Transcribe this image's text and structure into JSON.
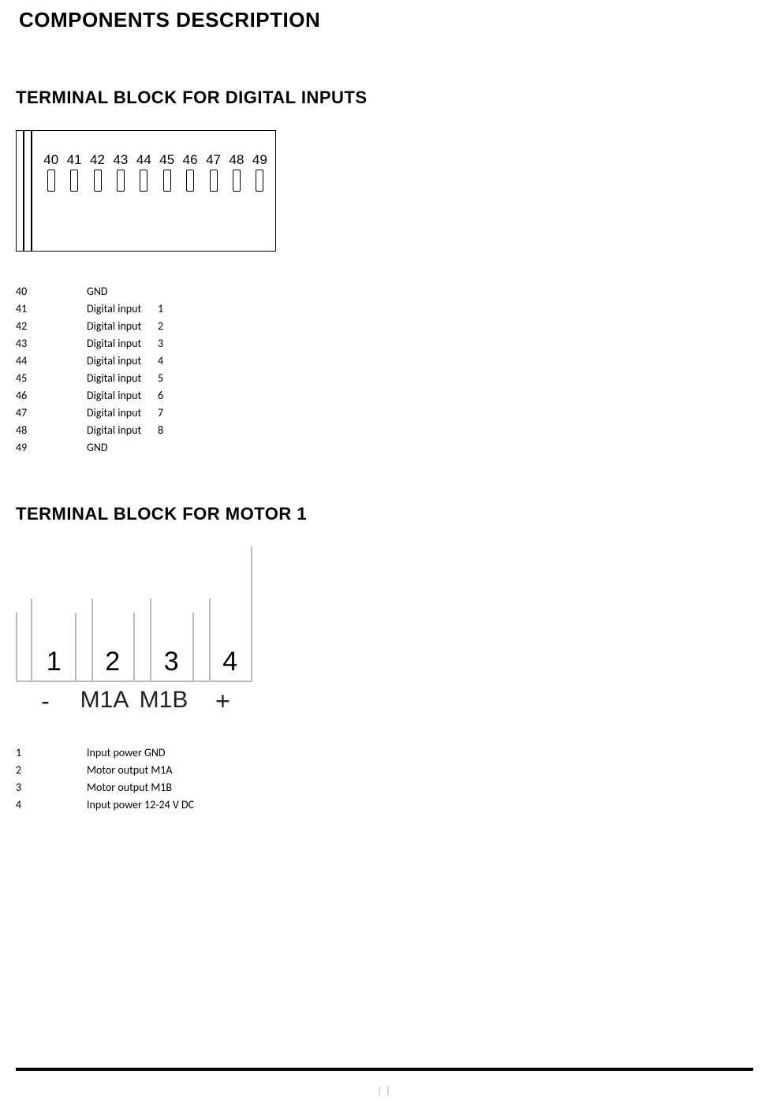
{
  "title": "COMPONENTS DESCRIPTION",
  "digital": {
    "heading": "TERMINAL BLOCK FOR DIGITAL INPUTS",
    "pins": [
      "40",
      "41",
      "42",
      "43",
      "44",
      "45",
      "46",
      "47",
      "48",
      "49"
    ],
    "rows": [
      {
        "num": "40",
        "label": "GND",
        "idx": ""
      },
      {
        "num": "41",
        "label": "Digital input",
        "idx": "1"
      },
      {
        "num": "42",
        "label": "Digital input",
        "idx": "2"
      },
      {
        "num": "43",
        "label": "Digital input",
        "idx": "3"
      },
      {
        "num": "44",
        "label": "Digital input",
        "idx": "4"
      },
      {
        "num": "45",
        "label": "Digital input",
        "idx": "5"
      },
      {
        "num": "46",
        "label": "Digital input",
        "idx": "6"
      },
      {
        "num": "47",
        "label": "Digital input",
        "idx": "7"
      },
      {
        "num": "48",
        "label": "Digital input",
        "idx": "8"
      },
      {
        "num": "49",
        "label": "GND",
        "idx": ""
      }
    ]
  },
  "motor": {
    "heading": "TERMINAL BLOCK FOR MOTOR 1",
    "top_numbers": [
      "1",
      "2",
      "3",
      "4"
    ],
    "bottom_labels": [
      "-",
      "M1A",
      "M1B",
      "+"
    ],
    "rows": [
      {
        "num": "1",
        "label": "Input power GND"
      },
      {
        "num": "2",
        "label": "Motor output M1A"
      },
      {
        "num": "3",
        "label": "Motor output M1B"
      },
      {
        "num": "4",
        "label": "Input power 12-24 V DC"
      }
    ]
  },
  "page_number": "| |"
}
